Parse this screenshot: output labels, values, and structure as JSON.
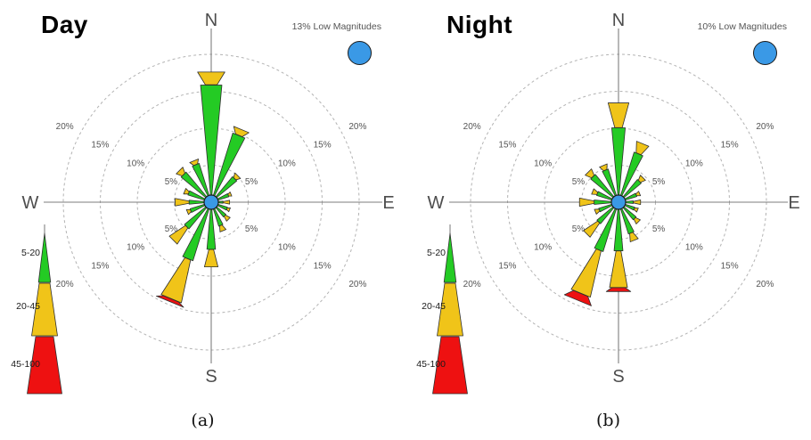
{
  "colors": {
    "green": "#24CB24",
    "yellow": "#F0C419",
    "red": "#EE1111",
    "blue": "#3A99E6",
    "petal_stroke": "#2e2e2e",
    "ring": "#b3b3b3",
    "axis": "#7d7d7d",
    "tick_text": "#555555",
    "compass_text": "#4d4d4d"
  },
  "compass": {
    "north": "N",
    "south": "S",
    "east": "E",
    "west": "W"
  },
  "legend": {
    "bins": [
      {
        "label": "5-20",
        "color": "#24CB24"
      },
      {
        "label": "20-45",
        "color": "#F0C419"
      },
      {
        "label": "45-100",
        "color": "#EE1111"
      }
    ]
  },
  "panels": [
    {
      "id": "day",
      "title": "Day",
      "low_magnitude_label": "13% Low Magnitudes",
      "caption": "(a)"
    },
    {
      "id": "night",
      "title": "Night",
      "low_magnitude_label": "10% Low Magnitudes",
      "caption": "(b)"
    }
  ],
  "chart_data": [
    {
      "type": "rose",
      "title": "Day",
      "units": "%",
      "ring_ticks": [
        5,
        10,
        15,
        20
      ],
      "low_magnitudes_pct": 13,
      "directions": [
        "N",
        "NNE",
        "NE",
        "ENE",
        "E",
        "ESE",
        "SE",
        "SSE",
        "S",
        "SSW",
        "SW",
        "WSW",
        "W",
        "WNW",
        "NW",
        "NNW"
      ],
      "series": [
        {
          "name": "5-20",
          "values": [
            15.9,
            9.8,
            4.5,
            2.5,
            1.6,
            2.3,
            2.6,
            3.4,
            6.4,
            8.3,
            4.7,
            3.0,
            3.0,
            3.3,
            5.3,
            5.5
          ]
        },
        {
          "name": "20-45",
          "values": [
            1.8,
            0.9,
            0.6,
            0.4,
            0.9,
            0.4,
            0.7,
            0.8,
            2.4,
            5.9,
            2.6,
            0.5,
            1.9,
            0.6,
            0.8,
            0.6
          ]
        },
        {
          "name": "45-100",
          "values": [
            0,
            0,
            0,
            0,
            0,
            0,
            0,
            0,
            0,
            0.5,
            0,
            0,
            0,
            0,
            0,
            0
          ]
        }
      ]
    },
    {
      "type": "rose",
      "title": "Night",
      "units": "%",
      "ring_ticks": [
        5,
        10,
        15,
        20
      ],
      "low_magnitudes_pct": 10,
      "directions": [
        "N",
        "NNE",
        "NE",
        "ENE",
        "E",
        "ESE",
        "SE",
        "SSE",
        "S",
        "SSW",
        "SW",
        "WSW",
        "W",
        "WNW",
        "NW",
        "NNW"
      ],
      "series": [
        {
          "name": "5-20",
          "values": [
            10.1,
            7.1,
            4.0,
            2.6,
            2.0,
            2.3,
            3.1,
            4.5,
            6.6,
            7.0,
            3.8,
            2.8,
            3.3,
            3.1,
            4.9,
            4.7
          ]
        },
        {
          "name": "20-45",
          "values": [
            3.4,
            1.5,
            0.7,
            0.5,
            1.0,
            0.5,
            0.7,
            1.1,
            5.0,
            6.4,
            2.3,
            0.6,
            2.0,
            0.7,
            0.9,
            0.7
          ]
        },
        {
          "name": "45-100",
          "values": [
            0,
            0,
            0,
            0,
            0,
            0,
            0,
            0,
            0.6,
            1.1,
            0,
            0,
            0,
            0,
            0,
            0
          ]
        }
      ]
    }
  ]
}
